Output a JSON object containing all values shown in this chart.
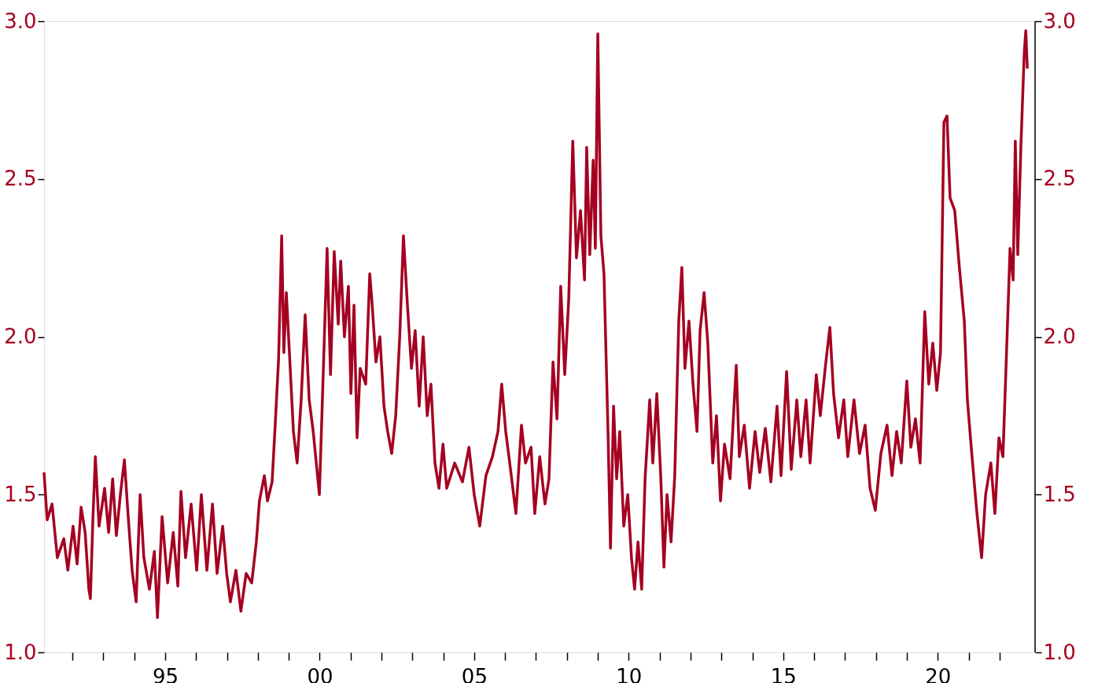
{
  "chart_data": {
    "type": "line",
    "x": [
      1991.08,
      1991.18,
      1991.34,
      1991.51,
      1991.72,
      1991.85,
      1992.02,
      1992.15,
      1992.28,
      1992.41,
      1992.53,
      1992.58,
      1992.66,
      1992.74,
      1992.86,
      1993.04,
      1993.17,
      1993.3,
      1993.42,
      1993.55,
      1993.68,
      1993.81,
      1993.93,
      1994.06,
      1994.19,
      1994.31,
      1994.49,
      1994.65,
      1994.75,
      1994.9,
      1995.08,
      1995.26,
      1995.41,
      1995.51,
      1995.66,
      1995.84,
      1996.02,
      1996.17,
      1996.35,
      1996.53,
      1996.68,
      1996.86,
      1996.99,
      1997.11,
      1997.29,
      1997.45,
      1997.62,
      1997.8,
      1997.95,
      1998.05,
      1998.21,
      1998.31,
      1998.46,
      1998.56,
      1998.67,
      1998.77,
      1998.84,
      1998.92,
      1999.02,
      1999.15,
      1999.27,
      1999.4,
      1999.53,
      1999.66,
      1999.79,
      1999.99,
      2000.12,
      2000.24,
      2000.35,
      2000.47,
      2000.6,
      2000.68,
      2000.8,
      2000.93,
      2001.01,
      2001.11,
      2001.21,
      2001.31,
      2001.49,
      2001.62,
      2001.7,
      2001.82,
      2001.95,
      2002.08,
      2002.2,
      2002.33,
      2002.46,
      2002.59,
      2002.71,
      2002.84,
      2002.97,
      2003.09,
      2003.22,
      2003.35,
      2003.48,
      2003.6,
      2003.73,
      2003.86,
      2003.99,
      2004.11,
      2004.37,
      2004.62,
      2004.83,
      2005.0,
      2005.18,
      2005.38,
      2005.59,
      2005.77,
      2005.89,
      2006.02,
      2006.15,
      2006.35,
      2006.53,
      2006.66,
      2006.84,
      2006.96,
      2007.12,
      2007.29,
      2007.42,
      2007.55,
      2007.68,
      2007.8,
      2007.93,
      2008.06,
      2008.19,
      2008.31,
      2008.44,
      2008.57,
      2008.64,
      2008.74,
      2008.85,
      2008.92,
      2009.0,
      2009.1,
      2009.2,
      2009.33,
      2009.41,
      2009.51,
      2009.61,
      2009.71,
      2009.84,
      2009.97,
      2010.09,
      2010.19,
      2010.3,
      2010.42,
      2010.53,
      2010.68,
      2010.78,
      2010.91,
      2011.04,
      2011.14,
      2011.24,
      2011.37,
      2011.49,
      2011.62,
      2011.72,
      2011.82,
      2011.95,
      2012.08,
      2012.21,
      2012.31,
      2012.44,
      2012.56,
      2012.72,
      2012.84,
      2012.97,
      2013.1,
      2013.28,
      2013.48,
      2013.58,
      2013.74,
      2013.91,
      2014.09,
      2014.24,
      2014.42,
      2014.6,
      2014.8,
      2014.93,
      2015.11,
      2015.26,
      2015.44,
      2015.57,
      2015.74,
      2015.87,
      2016.07,
      2016.2,
      2016.38,
      2016.51,
      2016.63,
      2016.79,
      2016.96,
      2017.09,
      2017.29,
      2017.47,
      2017.65,
      2017.81,
      2017.98,
      2018.16,
      2018.36,
      2018.52,
      2018.67,
      2018.82,
      2019.0,
      2019.13,
      2019.28,
      2019.43,
      2019.58,
      2019.71,
      2019.84,
      2019.97,
      2020.09,
      2020.2,
      2020.3,
      2020.4,
      2020.55,
      2020.7,
      2020.86,
      2020.96,
      2021.11,
      2021.26,
      2021.42,
      2021.55,
      2021.72,
      2021.85,
      2021.98,
      2022.11,
      2022.23,
      2022.34,
      2022.44,
      2022.51,
      2022.59,
      2022.69,
      2022.8,
      2022.85,
      2022.9
    ],
    "series": [
      {
        "color": "#a50021",
        "values": [
          1.57,
          1.42,
          1.47,
          1.3,
          1.36,
          1.26,
          1.4,
          1.28,
          1.46,
          1.38,
          1.2,
          1.17,
          1.42,
          1.62,
          1.4,
          1.52,
          1.38,
          1.55,
          1.37,
          1.5,
          1.61,
          1.42,
          1.26,
          1.16,
          1.5,
          1.3,
          1.2,
          1.32,
          1.11,
          1.43,
          1.22,
          1.38,
          1.21,
          1.51,
          1.3,
          1.47,
          1.26,
          1.5,
          1.26,
          1.47,
          1.25,
          1.4,
          1.25,
          1.16,
          1.26,
          1.13,
          1.25,
          1.22,
          1.35,
          1.48,
          1.56,
          1.48,
          1.54,
          1.72,
          1.93,
          2.32,
          1.95,
          2.14,
          1.95,
          1.7,
          1.6,
          1.8,
          2.07,
          1.8,
          1.7,
          1.5,
          1.9,
          2.28,
          1.88,
          2.27,
          2.04,
          2.24,
          2.0,
          2.16,
          1.82,
          2.1,
          1.68,
          1.9,
          1.85,
          2.2,
          2.1,
          1.92,
          2.0,
          1.78,
          1.7,
          1.63,
          1.75,
          2.0,
          2.32,
          2.1,
          1.9,
          2.02,
          1.78,
          2.0,
          1.75,
          1.85,
          1.6,
          1.52,
          1.66,
          1.52,
          1.6,
          1.54,
          1.65,
          1.5,
          1.4,
          1.56,
          1.62,
          1.7,
          1.85,
          1.7,
          1.6,
          1.44,
          1.72,
          1.6,
          1.65,
          1.44,
          1.62,
          1.47,
          1.55,
          1.92,
          1.74,
          2.16,
          1.88,
          2.12,
          2.62,
          2.25,
          2.4,
          2.18,
          2.6,
          2.26,
          2.56,
          2.28,
          2.96,
          2.32,
          2.2,
          1.7,
          1.33,
          1.78,
          1.55,
          1.7,
          1.4,
          1.5,
          1.3,
          1.2,
          1.35,
          1.2,
          1.55,
          1.8,
          1.6,
          1.82,
          1.55,
          1.27,
          1.5,
          1.35,
          1.56,
          2.05,
          2.22,
          1.9,
          2.05,
          1.85,
          1.7,
          2.02,
          2.14,
          1.98,
          1.6,
          1.75,
          1.48,
          1.66,
          1.55,
          1.91,
          1.62,
          1.72,
          1.52,
          1.7,
          1.57,
          1.71,
          1.54,
          1.78,
          1.56,
          1.89,
          1.58,
          1.8,
          1.62,
          1.8,
          1.6,
          1.88,
          1.75,
          1.92,
          2.03,
          1.82,
          1.68,
          1.8,
          1.62,
          1.8,
          1.63,
          1.72,
          1.52,
          1.45,
          1.63,
          1.72,
          1.56,
          1.7,
          1.6,
          1.86,
          1.65,
          1.74,
          1.6,
          2.08,
          1.85,
          1.98,
          1.83,
          1.95,
          2.68,
          2.7,
          2.44,
          2.4,
          2.22,
          2.05,
          1.8,
          1.62,
          1.45,
          1.3,
          1.5,
          1.6,
          1.44,
          1.68,
          1.62,
          1.96,
          2.28,
          2.18,
          2.62,
          2.26,
          2.6,
          2.9,
          2.97,
          2.85
        ]
      }
    ],
    "xlim": [
      1991.08,
      2023.15
    ],
    "xticks": [
      {
        "value": 1992,
        "label": null
      },
      {
        "value": 1993,
        "label": null
      },
      {
        "value": 1994,
        "label": null
      },
      {
        "value": 1995,
        "label": "95"
      },
      {
        "value": 1996,
        "label": null
      },
      {
        "value": 1997,
        "label": null
      },
      {
        "value": 1998,
        "label": null
      },
      {
        "value": 1999,
        "label": null
      },
      {
        "value": 2000,
        "label": "00"
      },
      {
        "value": 2001,
        "label": null
      },
      {
        "value": 2002,
        "label": null
      },
      {
        "value": 2003,
        "label": null
      },
      {
        "value": 2004,
        "label": null
      },
      {
        "value": 2005,
        "label": "05"
      },
      {
        "value": 2006,
        "label": null
      },
      {
        "value": 2007,
        "label": null
      },
      {
        "value": 2008,
        "label": null
      },
      {
        "value": 2009,
        "label": null
      },
      {
        "value": 2010,
        "label": "10"
      },
      {
        "value": 2011,
        "label": null
      },
      {
        "value": 2012,
        "label": null
      },
      {
        "value": 2013,
        "label": null
      },
      {
        "value": 2014,
        "label": null
      },
      {
        "value": 2015,
        "label": "15"
      },
      {
        "value": 2016,
        "label": null
      },
      {
        "value": 2017,
        "label": null
      },
      {
        "value": 2018,
        "label": null
      },
      {
        "value": 2019,
        "label": null
      },
      {
        "value": 2020,
        "label": "20"
      },
      {
        "value": 2021,
        "label": null
      },
      {
        "value": 2022,
        "label": null
      }
    ],
    "ylim": [
      1.0,
      3.0
    ],
    "yticks": [
      {
        "value": 1,
        "label": "1.0"
      },
      {
        "value": 1.5,
        "label": "1.5"
      },
      {
        "value": 2,
        "label": "2.0"
      },
      {
        "value": 2.5,
        "label": "2.5"
      },
      {
        "value": 3,
        "label": "3.0"
      }
    ],
    "y2lim": [
      1.0,
      3.0
    ],
    "y2ticks": [
      {
        "value": 1,
        "label": "1.0"
      },
      {
        "value": 1.5,
        "label": "1.5"
      },
      {
        "value": 2,
        "label": "2.0"
      },
      {
        "value": 2.5,
        "label": "2.5"
      },
      {
        "value": 3,
        "label": "3.0"
      }
    ],
    "grid": false,
    "marker": "none",
    "line_style": "solid"
  }
}
